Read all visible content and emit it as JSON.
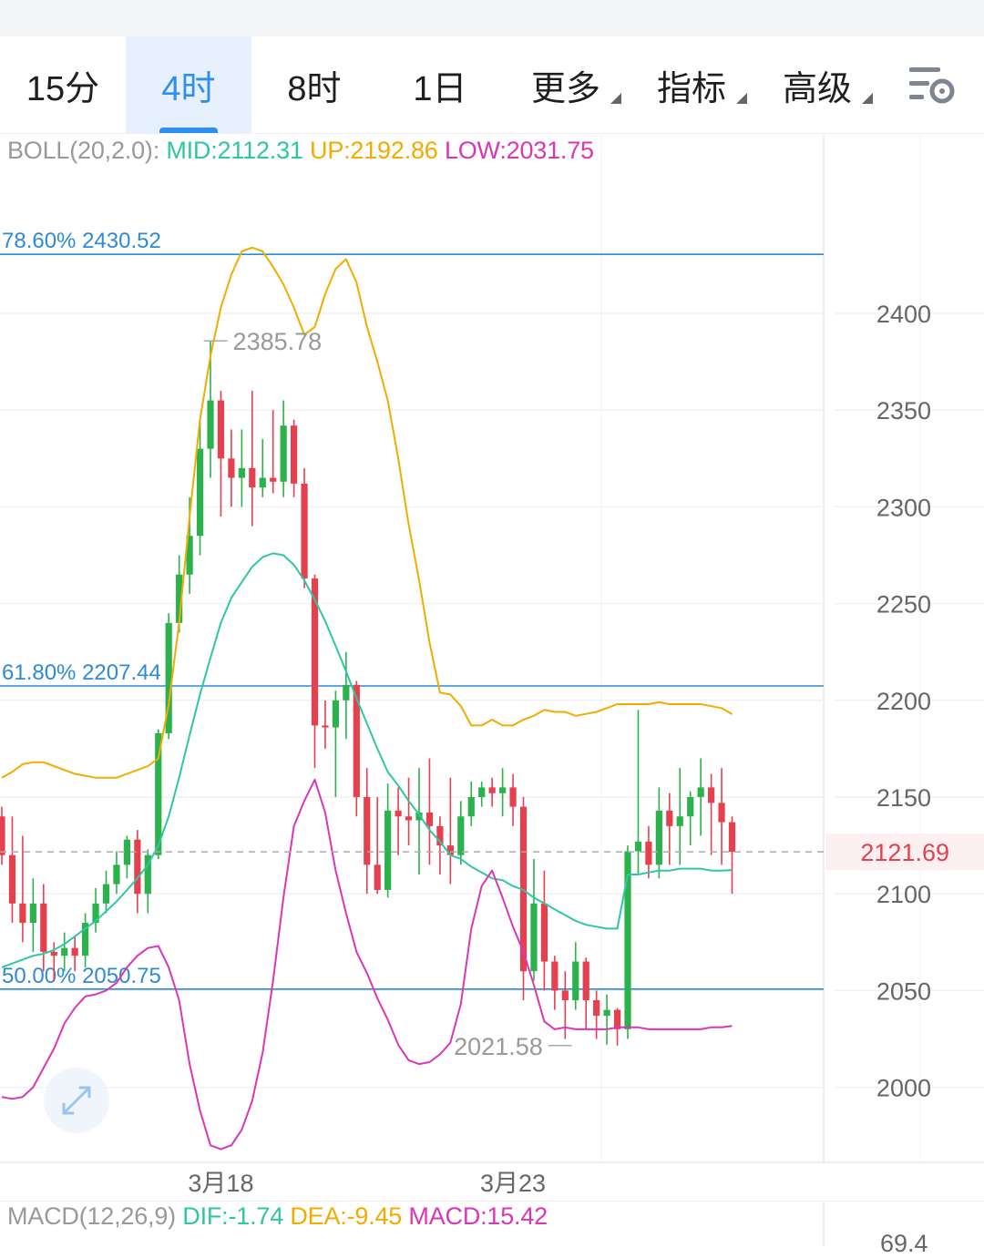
{
  "tabs": [
    {
      "label": "15分",
      "active": false
    },
    {
      "label": "4时",
      "active": true
    },
    {
      "label": "8时",
      "active": false
    },
    {
      "label": "1日",
      "active": false
    },
    {
      "label": "更多",
      "active": false,
      "dropdown": true
    },
    {
      "label": "指标",
      "active": false,
      "dropdown": true
    },
    {
      "label": "高级",
      "active": false,
      "dropdown": true
    }
  ],
  "settings_icon": "chart-settings-icon",
  "expand_icon": "expand-arrows-icon",
  "colors": {
    "up": "#2bb24c",
    "down": "#e5404e",
    "mid": "#2fc7a3",
    "upper": "#f0ad00",
    "lower": "#d936b8",
    "fib": "#2e8ad6",
    "accent": "#2f8ff0"
  },
  "boll": {
    "name": "BOLL(20,2.0):",
    "mid": "MID:2112.31",
    "up": "UP:2192.86",
    "low": "LOW:2031.75"
  },
  "macd": {
    "name": "MACD(12,26,9)",
    "dif": "DIF:-1.74",
    "dea": "DEA:-9.45",
    "macd": "MACD:15.42",
    "axis_partial": "69.4"
  },
  "chart_data": {
    "type": "candlestick",
    "title": "",
    "y_ticks": [
      2000,
      2050,
      2100,
      2150,
      2200,
      2250,
      2300,
      2350,
      2400
    ],
    "ylim": [
      1965,
      2440
    ],
    "x_labels": [
      {
        "index": 21,
        "label": "3月18"
      },
      {
        "index": 49,
        "label": "3月23"
      }
    ],
    "current_price": 2121.69,
    "current_price_label": "2121.69",
    "high_marker": {
      "index": 19,
      "value": 2385.78,
      "label": "2385.78"
    },
    "low_marker": {
      "index": 55,
      "value": 2021.58,
      "label": "2021.58"
    },
    "fib_levels": [
      {
        "label": "78.60% 2430.52",
        "value": 2430.52
      },
      {
        "label": "61.80% 2207.44",
        "value": 2207.44
      },
      {
        "label": "50.00% 2050.75",
        "value": 2050.75
      }
    ],
    "candles": [
      [
        2140,
        2120,
        2145,
        2115
      ],
      [
        2120,
        2095,
        2140,
        2085
      ],
      [
        2095,
        2085,
        2130,
        2075
      ],
      [
        2085,
        2095,
        2108,
        2070
      ],
      [
        2095,
        2070,
        2105,
        2060
      ],
      [
        2070,
        2068,
        2075,
        2055
      ],
      [
        2068,
        2072,
        2080,
        2060
      ],
      [
        2072,
        2068,
        2078,
        2060
      ],
      [
        2068,
        2085,
        2090,
        2062
      ],
      [
        2085,
        2095,
        2103,
        2080
      ],
      [
        2095,
        2105,
        2112,
        2090
      ],
      [
        2105,
        2115,
        2122,
        2100
      ],
      [
        2115,
        2128,
        2130,
        2108
      ],
      [
        2128,
        2100,
        2133,
        2090
      ],
      [
        2100,
        2120,
        2123,
        2090
      ],
      [
        2120,
        2183,
        2185,
        2118
      ],
      [
        2183,
        2240,
        2245,
        2180
      ],
      [
        2240,
        2265,
        2275,
        2235
      ],
      [
        2265,
        2285,
        2305,
        2255
      ],
      [
        2285,
        2330,
        2345,
        2275
      ],
      [
        2330,
        2355,
        2385.78,
        2315
      ],
      [
        2355,
        2325,
        2360,
        2295
      ],
      [
        2325,
        2315,
        2340,
        2300
      ],
      [
        2315,
        2320,
        2340,
        2300
      ],
      [
        2320,
        2310,
        2360,
        2290
      ],
      [
        2310,
        2315,
        2335,
        2305
      ],
      [
        2315,
        2313,
        2350,
        2307
      ],
      [
        2313,
        2342,
        2355,
        2305
      ],
      [
        2342,
        2312,
        2345,
        2305
      ],
      [
        2312,
        2263,
        2320,
        2258
      ],
      [
        2263,
        2187,
        2265,
        2165
      ],
      [
        2187,
        2186,
        2200,
        2175
      ],
      [
        2186,
        2200,
        2205,
        2150
      ],
      [
        2200,
        2208,
        2225,
        2180
      ],
      [
        2208,
        2150,
        2210,
        2140
      ],
      [
        2150,
        2115,
        2165,
        2100
      ],
      [
        2115,
        2102,
        2150,
        2100
      ],
      [
        2102,
        2143,
        2157,
        2098
      ],
      [
        2143,
        2140,
        2155,
        2120
      ],
      [
        2140,
        2138,
        2160,
        2125
      ],
      [
        2138,
        2142,
        2165,
        2110
      ],
      [
        2142,
        2135,
        2170,
        2115
      ],
      [
        2135,
        2125,
        2140,
        2110
      ],
      [
        2125,
        2120,
        2160,
        2105
      ],
      [
        2120,
        2140,
        2148,
        2115
      ],
      [
        2140,
        2150,
        2158,
        2135
      ],
      [
        2150,
        2155,
        2158,
        2145
      ],
      [
        2155,
        2152,
        2160,
        2145
      ],
      [
        2152,
        2155,
        2165,
        2140
      ],
      [
        2155,
        2145,
        2162,
        2135
      ],
      [
        2145,
        2060,
        2150,
        2045
      ],
      [
        2060,
        2095,
        2118,
        2055
      ],
      [
        2095,
        2065,
        2112,
        2050
      ],
      [
        2065,
        2050,
        2068,
        2040
      ],
      [
        2050,
        2045,
        2060,
        2025
      ],
      [
        2045,
        2065,
        2075,
        2040
      ],
      [
        2065,
        2045,
        2067,
        2030
      ],
      [
        2045,
        2037,
        2050,
        2025
      ],
      [
        2037,
        2040,
        2048,
        2022
      ],
      [
        2040,
        2030,
        2041,
        2021.58
      ],
      [
        2030,
        2122,
        2125,
        2025
      ],
      [
        2122,
        2127,
        2195,
        2110
      ],
      [
        2127,
        2115,
        2135,
        2108
      ],
      [
        2115,
        2143,
        2155,
        2108
      ],
      [
        2143,
        2135,
        2152,
        2115
      ],
      [
        2135,
        2140,
        2165,
        2115
      ],
      [
        2140,
        2150,
        2153,
        2125
      ],
      [
        2150,
        2155,
        2170,
        2130
      ],
      [
        2155,
        2147,
        2162,
        2120
      ],
      [
        2147,
        2137,
        2165,
        2115
      ],
      [
        2137,
        2121.69,
        2140,
        2100
      ]
    ],
    "series": [
      {
        "name": "MID",
        "values": [
          2062,
          2064,
          2066,
          2068,
          2069,
          2071,
          2074,
          2078,
          2082,
          2086,
          2091,
          2096,
          2102,
          2108,
          2115,
          2125,
          2140,
          2160,
          2182,
          2203,
          2222,
          2240,
          2253,
          2261,
          2269,
          2274,
          2276,
          2275,
          2270,
          2262,
          2252,
          2241,
          2228,
          2215,
          2201,
          2188,
          2175,
          2163,
          2156,
          2148,
          2141,
          2133,
          2127,
          2120,
          2118,
          2114,
          2111,
          2108,
          2107,
          2104,
          2102,
          2098,
          2095,
          2092,
          2089,
          2086,
          2084,
          2083,
          2082,
          2082,
          2110,
          2110,
          2111,
          2112,
          2112,
          2113,
          2113,
          2113,
          2112,
          2112,
          2112.31
        ]
      },
      {
        "name": "UP",
        "values": [
          2160,
          2163,
          2167,
          2168,
          2168,
          2166,
          2164,
          2162,
          2161,
          2160,
          2160,
          2160,
          2162,
          2164,
          2166,
          2170,
          2198,
          2240,
          2295,
          2345,
          2378,
          2403,
          2420,
          2432,
          2434,
          2432,
          2424,
          2415,
          2403,
          2389,
          2393,
          2410,
          2423,
          2428,
          2416,
          2393,
          2375,
          2355,
          2325,
          2291,
          2262,
          2230,
          2204,
          2203,
          2197,
          2187,
          2187,
          2190,
          2187,
          2187,
          2190,
          2192,
          2195,
          2194,
          2194,
          2192,
          2193,
          2194,
          2196,
          2198,
          2198,
          2198,
          2198,
          2199,
          2198,
          2198,
          2198,
          2198,
          2197,
          2196,
          2192.86
        ]
      },
      {
        "name": "LOW",
        "values": [
          1995,
          1994,
          1995,
          2000,
          2010,
          2020,
          2033,
          2041,
          2047,
          2048,
          2050,
          2054,
          2062,
          2068,
          2072,
          2073,
          2062,
          2045,
          2012,
          1988,
          1970,
          1968,
          1970,
          1978,
          1993,
          2018,
          2055,
          2098,
          2135,
          2148,
          2159,
          2142,
          2112,
          2090,
          2070,
          2059,
          2046,
          2035,
          2022,
          2014,
          2012,
          2013,
          2017,
          2023,
          2043,
          2082,
          2104,
          2112,
          2098,
          2083,
          2070,
          2053,
          2034,
          2030,
          2031,
          2030,
          2030,
          2030,
          2030,
          2031,
          2031,
          2031,
          2030,
          2030,
          2030,
          2030,
          2030,
          2030,
          2031,
          2031,
          2031.75
        ]
      }
    ]
  }
}
